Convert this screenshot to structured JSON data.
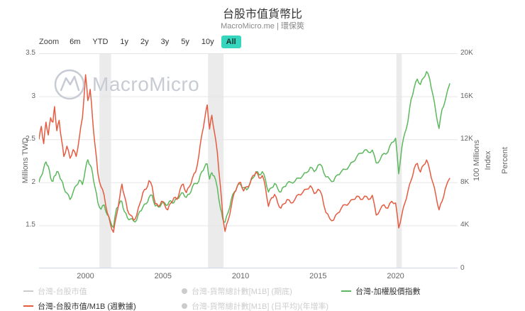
{
  "header": {
    "title": "台股市值貨幣比",
    "subtitle": "MacroMicro.me | 環保筴"
  },
  "toolbar": {
    "zoom_label": "Zoom",
    "buttons": [
      {
        "label": "6m",
        "selected": false
      },
      {
        "label": "YTD",
        "selected": false
      },
      {
        "label": "1y",
        "selected": false
      },
      {
        "label": "2y",
        "selected": false
      },
      {
        "label": "3y",
        "selected": false
      },
      {
        "label": "5y",
        "selected": false
      },
      {
        "label": "10y",
        "selected": false
      },
      {
        "label": "All",
        "selected": true
      }
    ]
  },
  "watermark": {
    "text": "MacroMicro"
  },
  "chart_data": {
    "type": "line",
    "title": "台股市值貨幣比",
    "x_range": [
      1997,
      2024
    ],
    "x_ticks": [
      {
        "v": 2000,
        "label": "2000"
      },
      {
        "v": 2005,
        "label": "2005"
      },
      {
        "v": 2010,
        "label": "2010"
      },
      {
        "v": 2015,
        "label": "2015"
      },
      {
        "v": 2020,
        "label": "2020"
      }
    ],
    "left_axis": {
      "title": "Millions TWD",
      "range": [
        1.0,
        3.5
      ],
      "ticks": [
        {
          "v": 1.5,
          "label": "1.5"
        },
        {
          "v": 2,
          "label": "2"
        },
        {
          "v": 2.5,
          "label": "2.5"
        },
        {
          "v": 3,
          "label": "3"
        },
        {
          "v": 3.5,
          "label": "3.5"
        }
      ]
    },
    "right_axis": {
      "titles": [
        "100 Millions",
        "Index",
        "Percent"
      ],
      "range": [
        0,
        20000
      ],
      "ticks": [
        {
          "v": 0,
          "label": "0"
        },
        {
          "v": 4000,
          "label": "4K"
        },
        {
          "v": 8000,
          "label": "8K"
        },
        {
          "v": 12000,
          "label": "12K"
        },
        {
          "v": 16000,
          "label": "16K"
        },
        {
          "v": 20000,
          "label": "20K"
        }
      ]
    },
    "recession_bands": [
      [
        2000.9,
        2001.65
      ],
      [
        2007.9,
        2008.9
      ],
      [
        2020.05,
        2020.4
      ]
    ],
    "grid": true,
    "series": [
      {
        "name": "台灣-加權股價指數",
        "axis": "right",
        "color": "#5cb85c",
        "points": [
          [
            1997.0,
            8000
          ],
          [
            1997.15,
            8600
          ],
          [
            1997.3,
            9300
          ],
          [
            1997.45,
            9900
          ],
          [
            1997.6,
            9500
          ],
          [
            1997.75,
            8400
          ],
          [
            1997.9,
            8100
          ],
          [
            1998.0,
            8600
          ],
          [
            1998.15,
            9000
          ],
          [
            1998.3,
            8700
          ],
          [
            1998.45,
            8200
          ],
          [
            1998.6,
            7500
          ],
          [
            1998.8,
            7000
          ],
          [
            1999.0,
            6400
          ],
          [
            1999.2,
            7100
          ],
          [
            1999.4,
            7700
          ],
          [
            1999.6,
            8200
          ],
          [
            1999.8,
            7800
          ],
          [
            2000.0,
            9300
          ],
          [
            2000.15,
            10100
          ],
          [
            2000.3,
            9600
          ],
          [
            2000.45,
            8900
          ],
          [
            2000.6,
            7600
          ],
          [
            2000.8,
            6100
          ],
          [
            2001.0,
            5500
          ],
          [
            2001.2,
            5900
          ],
          [
            2001.4,
            5000
          ],
          [
            2001.6,
            4400
          ],
          [
            2001.8,
            3800
          ],
          [
            2002.0,
            5600
          ],
          [
            2002.2,
            6100
          ],
          [
            2002.35,
            6200
          ],
          [
            2002.5,
            5300
          ],
          [
            2002.7,
            4700
          ],
          [
            2002.9,
            4600
          ],
          [
            2003.1,
            4400
          ],
          [
            2003.3,
            4500
          ],
          [
            2003.5,
            5300
          ],
          [
            2003.7,
            5700
          ],
          [
            2003.9,
            6000
          ],
          [
            2004.1,
            6600
          ],
          [
            2004.3,
            6800
          ],
          [
            2004.5,
            5800
          ],
          [
            2004.7,
            5700
          ],
          [
            2004.9,
            6000
          ],
          [
            2005.1,
            6100
          ],
          [
            2005.3,
            5900
          ],
          [
            2005.5,
            6300
          ],
          [
            2005.7,
            6100
          ],
          [
            2005.9,
            6500
          ],
          [
            2006.1,
            6800
          ],
          [
            2006.3,
            7000
          ],
          [
            2006.5,
            6600
          ],
          [
            2006.7,
            6900
          ],
          [
            2006.9,
            7600
          ],
          [
            2007.1,
            7900
          ],
          [
            2007.3,
            8100
          ],
          [
            2007.5,
            9000
          ],
          [
            2007.7,
            9500
          ],
          [
            2007.85,
            9700
          ],
          [
            2008.0,
            8300
          ],
          [
            2008.15,
            8900
          ],
          [
            2008.3,
            8600
          ],
          [
            2008.5,
            7500
          ],
          [
            2008.7,
            5600
          ],
          [
            2008.85,
            4600
          ],
          [
            2009.0,
            4300
          ],
          [
            2009.2,
            5200
          ],
          [
            2009.4,
            6400
          ],
          [
            2009.6,
            7100
          ],
          [
            2009.8,
            7700
          ],
          [
            2010.0,
            7800
          ],
          [
            2010.2,
            7500
          ],
          [
            2010.4,
            7300
          ],
          [
            2010.6,
            7900
          ],
          [
            2010.8,
            8400
          ],
          [
            2011.0,
            9000
          ],
          [
            2011.2,
            8700
          ],
          [
            2011.4,
            9000
          ],
          [
            2011.6,
            8300
          ],
          [
            2011.8,
            7100
          ],
          [
            2012.0,
            7500
          ],
          [
            2012.2,
            7900
          ],
          [
            2012.4,
            7400
          ],
          [
            2012.6,
            7100
          ],
          [
            2012.8,
            7600
          ],
          [
            2013.0,
            7900
          ],
          [
            2013.25,
            8000
          ],
          [
            2013.5,
            8100
          ],
          [
            2013.75,
            8400
          ],
          [
            2014.0,
            8600
          ],
          [
            2014.25,
            8900
          ],
          [
            2014.5,
            9400
          ],
          [
            2014.75,
            9000
          ],
          [
            2015.0,
            9600
          ],
          [
            2015.25,
            9500
          ],
          [
            2015.5,
            8500
          ],
          [
            2015.75,
            8300
          ],
          [
            2016.0,
            8100
          ],
          [
            2016.25,
            8700
          ],
          [
            2016.5,
            9000
          ],
          [
            2016.75,
            9200
          ],
          [
            2017.0,
            9500
          ],
          [
            2017.25,
            9900
          ],
          [
            2017.5,
            10400
          ],
          [
            2017.75,
            10700
          ],
          [
            2018.0,
            11000
          ],
          [
            2018.25,
            10800
          ],
          [
            2018.5,
            11000
          ],
          [
            2018.75,
            9800
          ],
          [
            2019.0,
            10100
          ],
          [
            2019.25,
            10700
          ],
          [
            2019.5,
            10800
          ],
          [
            2019.75,
            11700
          ],
          [
            2020.0,
            12100
          ],
          [
            2020.2,
            8800
          ],
          [
            2020.4,
            11200
          ],
          [
            2020.6,
            12600
          ],
          [
            2020.8,
            13700
          ],
          [
            2021.0,
            15700
          ],
          [
            2021.2,
            16800
          ],
          [
            2021.4,
            17600
          ],
          [
            2021.6,
            17100
          ],
          [
            2021.8,
            17700
          ],
          [
            2022.0,
            18300
          ],
          [
            2022.2,
            17600
          ],
          [
            2022.4,
            16200
          ],
          [
            2022.6,
            14500
          ],
          [
            2022.8,
            13000
          ],
          [
            2023.0,
            14800
          ],
          [
            2023.2,
            15600
          ],
          [
            2023.5,
            17200
          ]
        ]
      },
      {
        "name": "台灣-台股市值/M1B (週數據)",
        "axis": "left",
        "color": "#e65b40",
        "points": [
          [
            1997.0,
            2.5
          ],
          [
            1997.15,
            2.65
          ],
          [
            1997.3,
            2.45
          ],
          [
            1997.45,
            2.7
          ],
          [
            1997.6,
            2.55
          ],
          [
            1997.75,
            2.75
          ],
          [
            1997.9,
            2.7
          ],
          [
            1998.0,
            2.88
          ],
          [
            1998.15,
            2.6
          ],
          [
            1998.3,
            2.72
          ],
          [
            1998.45,
            2.5
          ],
          [
            1998.6,
            2.3
          ],
          [
            1998.8,
            2.42
          ],
          [
            1999.0,
            2.28
          ],
          [
            1999.2,
            2.38
          ],
          [
            1999.4,
            2.3
          ],
          [
            1999.6,
            2.52
          ],
          [
            1999.8,
            2.75
          ],
          [
            2000.0,
            3.25
          ],
          [
            2000.15,
            2.95
          ],
          [
            2000.3,
            3.08
          ],
          [
            2000.45,
            2.75
          ],
          [
            2000.6,
            2.45
          ],
          [
            2000.8,
            2.1
          ],
          [
            2001.0,
            1.95
          ],
          [
            2001.2,
            1.85
          ],
          [
            2001.4,
            1.65
          ],
          [
            2001.6,
            1.52
          ],
          [
            2001.8,
            1.42
          ],
          [
            2002.0,
            1.62
          ],
          [
            2002.2,
            1.82
          ],
          [
            2002.35,
            1.98
          ],
          [
            2002.5,
            1.85
          ],
          [
            2002.7,
            1.68
          ],
          [
            2002.9,
            1.62
          ],
          [
            2003.1,
            1.56
          ],
          [
            2003.3,
            1.62
          ],
          [
            2003.5,
            1.75
          ],
          [
            2003.7,
            1.88
          ],
          [
            2003.9,
            1.92
          ],
          [
            2004.1,
            2.02
          ],
          [
            2004.3,
            1.95
          ],
          [
            2004.5,
            1.75
          ],
          [
            2004.7,
            1.72
          ],
          [
            2004.9,
            1.78
          ],
          [
            2005.1,
            1.74
          ],
          [
            2005.3,
            1.68
          ],
          [
            2005.5,
            1.76
          ],
          [
            2005.7,
            1.82
          ],
          [
            2005.9,
            1.8
          ],
          [
            2006.1,
            1.92
          ],
          [
            2006.3,
            1.98
          ],
          [
            2006.5,
            1.88
          ],
          [
            2006.7,
            1.95
          ],
          [
            2006.9,
            2.05
          ],
          [
            2007.1,
            2.12
          ],
          [
            2007.3,
            2.3
          ],
          [
            2007.5,
            2.55
          ],
          [
            2007.7,
            2.75
          ],
          [
            2007.85,
            2.9
          ],
          [
            2008.0,
            2.62
          ],
          [
            2008.15,
            2.78
          ],
          [
            2008.3,
            2.6
          ],
          [
            2008.5,
            2.35
          ],
          [
            2008.7,
            1.95
          ],
          [
            2008.85,
            1.62
          ],
          [
            2009.0,
            1.43
          ],
          [
            2009.2,
            1.56
          ],
          [
            2009.4,
            1.72
          ],
          [
            2009.6,
            1.88
          ],
          [
            2009.8,
            1.96
          ],
          [
            2010.0,
            2.0
          ],
          [
            2010.2,
            1.9
          ],
          [
            2010.4,
            1.95
          ],
          [
            2010.6,
            1.98
          ],
          [
            2010.8,
            2.08
          ],
          [
            2011.0,
            2.12
          ],
          [
            2011.2,
            2.05
          ],
          [
            2011.4,
            2.08
          ],
          [
            2011.6,
            1.95
          ],
          [
            2011.8,
            1.72
          ],
          [
            2012.0,
            1.82
          ],
          [
            2012.2,
            1.86
          ],
          [
            2012.4,
            1.76
          ],
          [
            2012.6,
            1.7
          ],
          [
            2012.8,
            1.75
          ],
          [
            2013.0,
            1.8
          ],
          [
            2013.25,
            1.76
          ],
          [
            2013.5,
            1.8
          ],
          [
            2013.75,
            1.86
          ],
          [
            2014.0,
            1.88
          ],
          [
            2014.25,
            1.92
          ],
          [
            2014.5,
            1.96
          ],
          [
            2014.75,
            1.87
          ],
          [
            2015.0,
            1.92
          ],
          [
            2015.25,
            1.85
          ],
          [
            2015.5,
            1.65
          ],
          [
            2015.75,
            1.58
          ],
          [
            2016.0,
            1.56
          ],
          [
            2016.25,
            1.64
          ],
          [
            2016.5,
            1.7
          ],
          [
            2016.75,
            1.74
          ],
          [
            2017.0,
            1.76
          ],
          [
            2017.25,
            1.8
          ],
          [
            2017.5,
            1.84
          ],
          [
            2017.75,
            1.8
          ],
          [
            2018.0,
            1.84
          ],
          [
            2018.25,
            1.8
          ],
          [
            2018.5,
            1.85
          ],
          [
            2018.75,
            1.62
          ],
          [
            2019.0,
            1.68
          ],
          [
            2019.25,
            1.74
          ],
          [
            2019.5,
            1.7
          ],
          [
            2019.75,
            1.78
          ],
          [
            2020.0,
            1.76
          ],
          [
            2020.2,
            1.47
          ],
          [
            2020.4,
            1.62
          ],
          [
            2020.6,
            1.76
          ],
          [
            2020.8,
            1.9
          ],
          [
            2021.0,
            2.02
          ],
          [
            2021.2,
            2.16
          ],
          [
            2021.4,
            2.22
          ],
          [
            2021.6,
            2.12
          ],
          [
            2021.8,
            2.2
          ],
          [
            2022.0,
            2.26
          ],
          [
            2022.2,
            2.14
          ],
          [
            2022.4,
            2.0
          ],
          [
            2022.6,
            1.85
          ],
          [
            2022.8,
            1.68
          ],
          [
            2023.0,
            1.78
          ],
          [
            2023.2,
            1.92
          ],
          [
            2023.5,
            2.05
          ]
        ]
      }
    ]
  },
  "legend": {
    "items": [
      {
        "label": "台灣-台股市值",
        "marker": "line",
        "color": "#cccccc",
        "disabled": true
      },
      {
        "label": "台灣-貨幣總計數[M1B] (期底)",
        "marker": "dot",
        "color": "#cccccc",
        "disabled": true
      },
      {
        "label": "台灣-加權股價指數",
        "marker": "line",
        "color": "#5cb85c",
        "disabled": false
      },
      {
        "label": "台灣-台股市值/M1B (週數據)",
        "marker": "line",
        "color": "#e65b40",
        "disabled": false
      },
      {
        "label": "台灣-貨幣總計數[M1B] (日平均)(年增率)",
        "marker": "dot",
        "color": "#cccccc",
        "disabled": true
      }
    ]
  }
}
